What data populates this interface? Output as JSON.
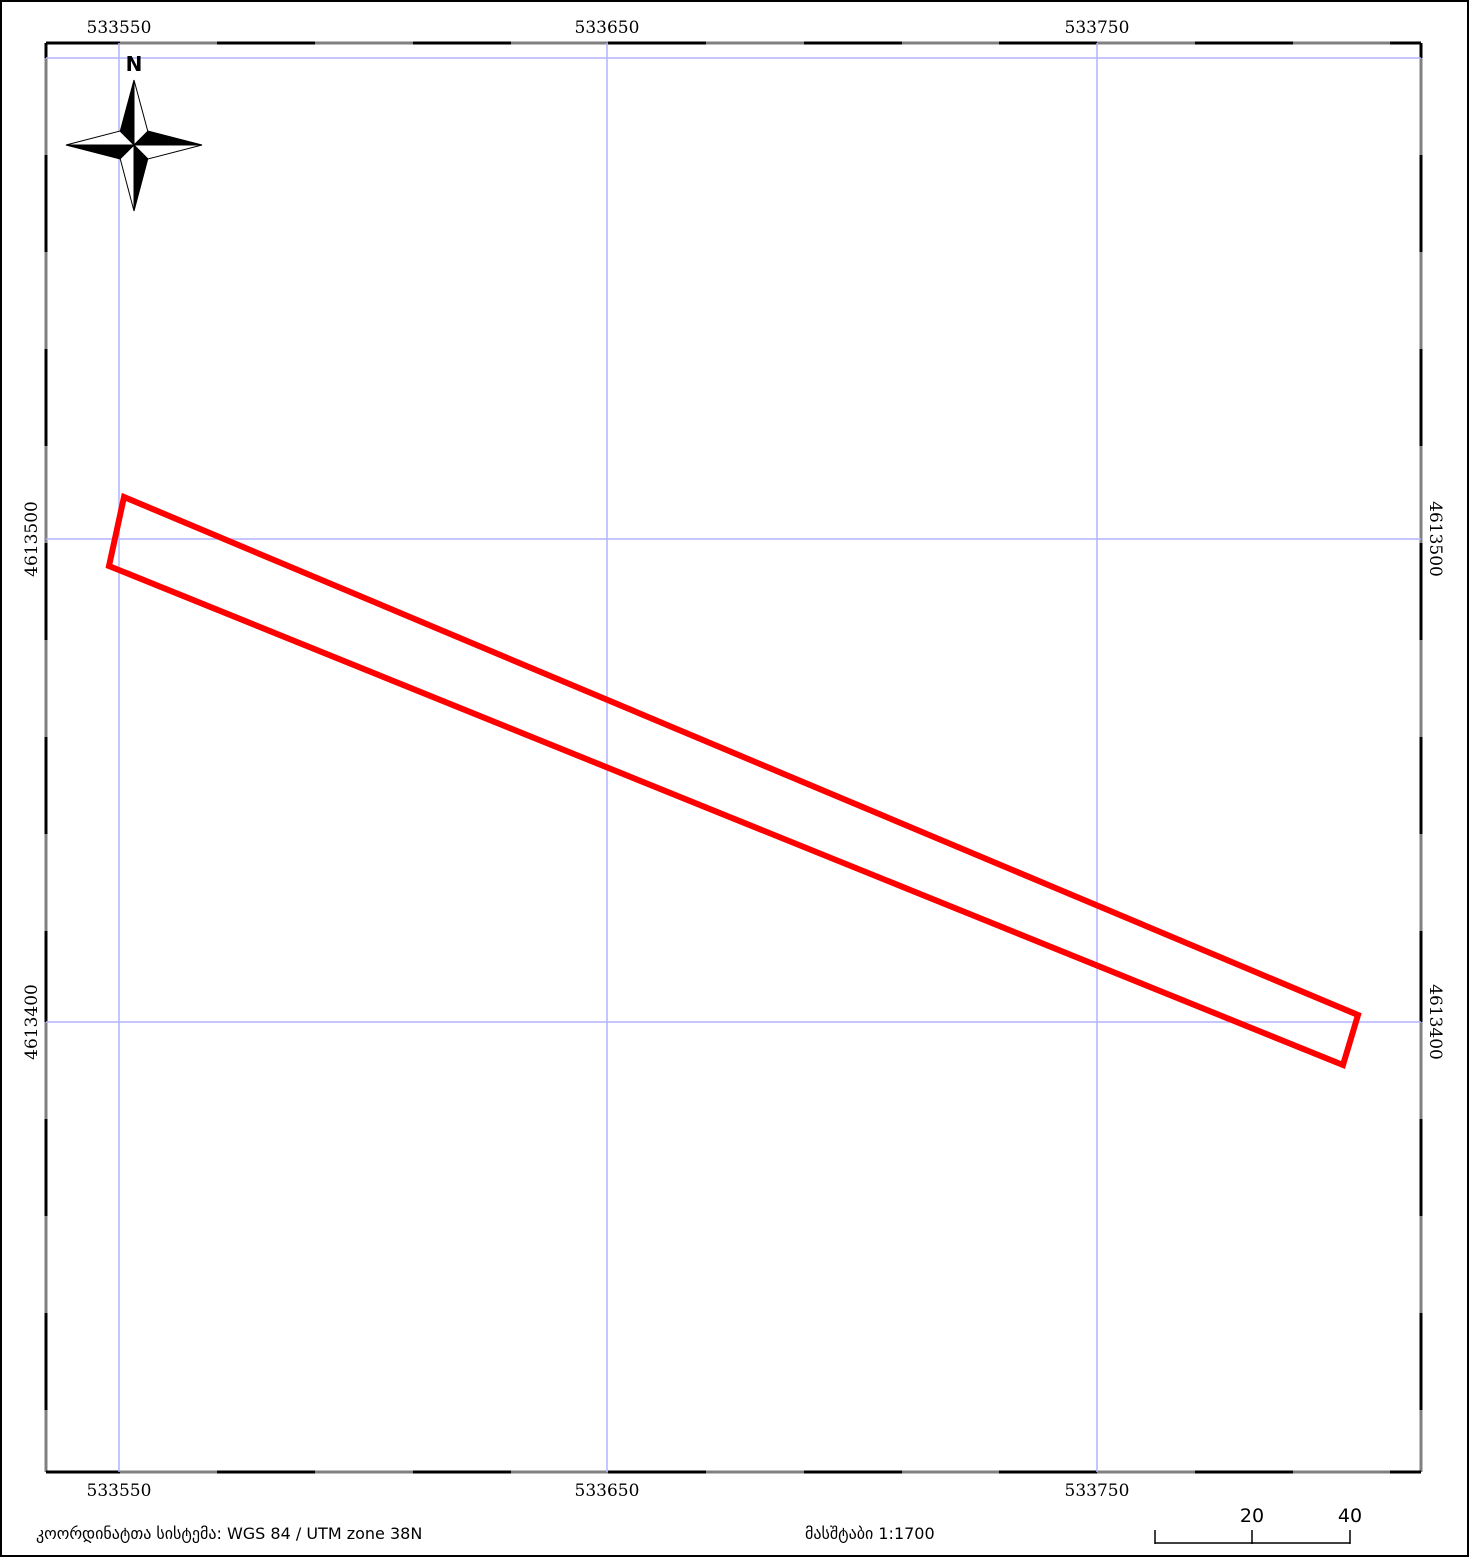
{
  "map": {
    "top_ticks": [
      "533550",
      "533650",
      "533750"
    ],
    "bottom_ticks": [
      "533550",
      "533650",
      "533750"
    ],
    "left_ticks": [
      "4613500",
      "4613400"
    ],
    "right_ticks": [
      "4613500",
      "4613400"
    ],
    "grid_color": "#b3b3ff",
    "parcel_color": "#ff0000",
    "frame_color": "#000000"
  },
  "north_arrow": {
    "label": "N",
    "icon": "compass-rose-icon"
  },
  "footer": {
    "crs_text": "კოორდინატთა სისტემა: WGS 84 / UTM zone 38N",
    "scale_text": "მასშტაბი 1:1700"
  },
  "scale_bar": {
    "labels": [
      "20",
      "40"
    ]
  }
}
